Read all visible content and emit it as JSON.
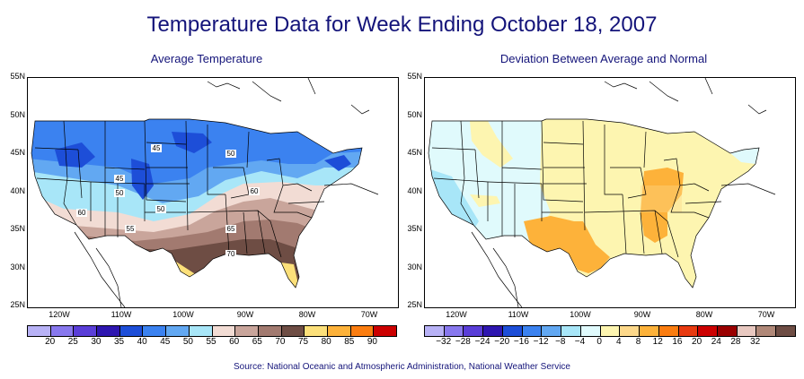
{
  "title": "Temperature Data for Week Ending October 18, 2007",
  "panels": {
    "left": {
      "subtitle": "Average Temperature",
      "contour_labels": [
        "45",
        "50",
        "45",
        "50",
        "50",
        "60",
        "60",
        "55",
        "65",
        "70"
      ],
      "legend": {
        "labels": [
          "20",
          "25",
          "30",
          "35",
          "40",
          "45",
          "50",
          "55",
          "60",
          "65",
          "70",
          "75",
          "80",
          "85",
          "90"
        ],
        "colors": [
          "#b8b2f6",
          "#8878ee",
          "#5a3ed8",
          "#2e16b0",
          "#1d4ed8",
          "#3b82f0",
          "#62a8f2",
          "#a8e6f8",
          "#f2dcd4",
          "#c9a59b",
          "#a27a70",
          "#6e4d44",
          "#fce07a",
          "#fdb23a",
          "#fb7d10",
          "#cc0000"
        ]
      }
    },
    "right": {
      "subtitle": "Deviation Between Average and Normal",
      "legend": {
        "labels": [
          "−32",
          "−28",
          "−24",
          "−20",
          "−16",
          "−12",
          "−8",
          "−4",
          "0",
          "4",
          "8",
          "12",
          "16",
          "20",
          "24",
          "28",
          "32"
        ],
        "colors": [
          "#b8b2f6",
          "#8878ee",
          "#5a3ed8",
          "#2e16b0",
          "#1d4ed8",
          "#3b82f0",
          "#62a8f2",
          "#a8e6f8",
          "#e0fafc",
          "#fdf5b0",
          "#fdd88a",
          "#fdb23a",
          "#fb7d10",
          "#e83a10",
          "#cc0000",
          "#9a0000",
          "#e8c8c0",
          "#b08878",
          "#6e4d44"
        ]
      }
    }
  },
  "axes": {
    "lat_labels": [
      "55N",
      "50N",
      "45N",
      "40N",
      "35N",
      "30N",
      "25N"
    ],
    "lon_labels": [
      "120W",
      "110W",
      "100W",
      "90W",
      "80W",
      "70W"
    ]
  },
  "source": "Source:  National Oceanic and Atmospheric Administration, National Weather Service"
}
